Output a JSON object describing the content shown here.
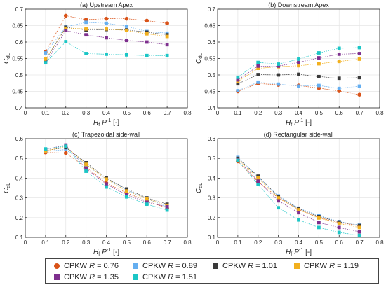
{
  "chart_data": [
    {
      "type": "line",
      "title": "(a) Upstream Apex",
      "xlabel": "H_f P^-1 [-]",
      "ylabel": "C_dL",
      "xlim": [
        0,
        0.8
      ],
      "ylim": [
        0.4,
        0.7
      ],
      "xticks": [
        0,
        0.1,
        0.2,
        0.3,
        0.4,
        0.5,
        0.6,
        0.7,
        0.8
      ],
      "yticks": [
        0.4,
        0.45,
        0.5,
        0.55,
        0.6,
        0.65,
        0.7
      ],
      "grid": true,
      "x": [
        0.1,
        0.2,
        0.3,
        0.4,
        0.5,
        0.6,
        0.7
      ],
      "series": [
        {
          "name": "CPKW R = 0.76",
          "values": [
            0.57,
            0.68,
            0.668,
            0.671,
            0.671,
            0.665,
            0.657
          ]
        },
        {
          "name": "CPKW R = 0.89",
          "values": [
            0.567,
            0.646,
            0.66,
            0.657,
            0.648,
            0.632,
            0.627
          ]
        },
        {
          "name": "CPKW R = 1.01",
          "values": [
            0.545,
            0.645,
            0.637,
            0.638,
            0.637,
            0.63,
            0.622
          ]
        },
        {
          "name": "CPKW R = 1.19",
          "values": [
            0.548,
            0.642,
            0.64,
            0.64,
            0.635,
            0.625,
            0.617
          ]
        },
        {
          "name": "CPKW R = 1.35",
          "values": [
            0.537,
            0.635,
            0.622,
            0.613,
            0.605,
            0.6,
            0.592
          ]
        },
        {
          "name": "CPKW R = 1.51",
          "values": [
            0.537,
            0.601,
            0.565,
            0.563,
            0.561,
            0.559,
            0.559
          ]
        }
      ]
    },
    {
      "type": "line",
      "title": "(b) Downstream Apex",
      "xlabel": "H_f P^-1 [-]",
      "ylabel": "C_dL",
      "xlim": [
        0,
        0.8
      ],
      "ylim": [
        0.4,
        0.7
      ],
      "xticks": [
        0,
        0.1,
        0.2,
        0.3,
        0.4,
        0.5,
        0.6,
        0.7,
        0.8
      ],
      "yticks": [
        0.4,
        0.45,
        0.5,
        0.55,
        0.6,
        0.65,
        0.7
      ],
      "grid": true,
      "x": [
        0.1,
        0.2,
        0.3,
        0.4,
        0.5,
        0.6,
        0.7
      ],
      "series": [
        {
          "name": "CPKW R = 0.76",
          "values": [
            0.45,
            0.474,
            0.47,
            0.468,
            0.46,
            0.451,
            0.44
          ]
        },
        {
          "name": "CPKW R = 0.89",
          "values": [
            0.452,
            0.478,
            0.472,
            0.466,
            0.468,
            0.459,
            0.466
          ]
        },
        {
          "name": "CPKW R = 1.01",
          "values": [
            0.473,
            0.501,
            0.5,
            0.502,
            0.495,
            0.49,
            0.492
          ]
        },
        {
          "name": "CPKW R = 1.19",
          "values": [
            0.48,
            0.52,
            0.525,
            0.528,
            0.534,
            0.541,
            0.548
          ]
        },
        {
          "name": "CPKW R = 1.35",
          "values": [
            0.485,
            0.527,
            0.527,
            0.538,
            0.552,
            0.563,
            0.565
          ]
        },
        {
          "name": "CPKW R = 1.51",
          "values": [
            0.493,
            0.538,
            0.533,
            0.548,
            0.567,
            0.581,
            0.583
          ]
        }
      ]
    },
    {
      "type": "line",
      "title": "(c) Trapezoidal side-wall",
      "xlabel": "H_f P^-1 [-]",
      "ylabel": "C_dL",
      "xlim": [
        0,
        0.8
      ],
      "ylim": [
        0.1,
        0.6
      ],
      "xticks": [
        0,
        0.1,
        0.2,
        0.3,
        0.4,
        0.5,
        0.6,
        0.7,
        0.8
      ],
      "yticks": [
        0.1,
        0.2,
        0.3,
        0.4,
        0.5,
        0.6
      ],
      "grid": true,
      "x": [
        0.1,
        0.2,
        0.3,
        0.4,
        0.5,
        0.6,
        0.7
      ],
      "series": [
        {
          "name": "CPKW R = 0.76",
          "values": [
            0.53,
            0.527,
            0.455,
            0.375,
            0.325,
            0.285,
            0.247
          ]
        },
        {
          "name": "CPKW R = 0.89",
          "values": [
            0.535,
            0.545,
            0.468,
            0.395,
            0.34,
            0.295,
            0.255
          ]
        },
        {
          "name": "CPKW R = 1.01",
          "values": [
            0.54,
            0.555,
            0.478,
            0.4,
            0.345,
            0.3,
            0.268
          ]
        },
        {
          "name": "CPKW R = 1.19",
          "values": [
            0.538,
            0.56,
            0.47,
            0.395,
            0.335,
            0.295,
            0.262
          ]
        },
        {
          "name": "CPKW R = 1.35",
          "values": [
            0.545,
            0.568,
            0.448,
            0.37,
            0.315,
            0.278,
            0.255
          ]
        },
        {
          "name": "CPKW R = 1.51",
          "values": [
            0.548,
            0.562,
            0.435,
            0.355,
            0.305,
            0.268,
            0.238
          ]
        }
      ]
    },
    {
      "type": "line",
      "title": "(d) Rectangular side-wall",
      "xlabel": "H_f P^-1 [-]",
      "ylabel": "C_dL",
      "xlim": [
        0,
        0.8
      ],
      "ylim": [
        0.1,
        0.6
      ],
      "xticks": [
        0,
        0.1,
        0.2,
        0.3,
        0.4,
        0.5,
        0.6,
        0.7,
        0.8
      ],
      "yticks": [
        0.1,
        0.2,
        0.3,
        0.4,
        0.5,
        0.6
      ],
      "grid": true,
      "x": [
        0.1,
        0.2,
        0.3,
        0.4,
        0.5,
        0.6,
        0.7
      ],
      "series": [
        {
          "name": "CPKW R = 0.76",
          "values": [
            0.485,
            0.382,
            0.3,
            0.24,
            0.2,
            0.175,
            0.158
          ]
        },
        {
          "name": "CPKW R = 0.89",
          "values": [
            0.505,
            0.405,
            0.31,
            0.248,
            0.21,
            0.18,
            0.162
          ]
        },
        {
          "name": "CPKW R = 1.01",
          "values": [
            0.5,
            0.41,
            0.305,
            0.245,
            0.205,
            0.178,
            0.16
          ]
        },
        {
          "name": "CPKW R = 1.19",
          "values": [
            0.495,
            0.4,
            0.3,
            0.24,
            0.198,
            0.17,
            0.15
          ]
        },
        {
          "name": "CPKW R = 1.35",
          "values": [
            0.492,
            0.385,
            0.285,
            0.225,
            0.175,
            0.15,
            0.128
          ]
        },
        {
          "name": "CPKW R = 1.51",
          "values": [
            0.49,
            0.368,
            0.25,
            0.188,
            0.15,
            0.125,
            0.11
          ]
        }
      ]
    }
  ],
  "legend": {
    "placement": "bottom",
    "items": [
      {
        "label": "CPKW R = 0.76",
        "marker": "circle",
        "color": "#d95319"
      },
      {
        "label": "CPKW R = 0.89",
        "marker": "square",
        "color": "#64aef0"
      },
      {
        "label": "CPKW R = 1.01",
        "marker": "square",
        "color": "#3a3a3a"
      },
      {
        "label": "CPKW R = 1.19",
        "marker": "square",
        "color": "#f2b01e"
      },
      {
        "label": "CPKW R = 1.35",
        "marker": "square",
        "color": "#7e2f8e"
      },
      {
        "label": "CPKW R = 1.51",
        "marker": "square",
        "color": "#1bc6c6"
      }
    ]
  },
  "colors": {
    "grid": "#e6e6e6",
    "axis": "#262626",
    "text": "#262626"
  }
}
